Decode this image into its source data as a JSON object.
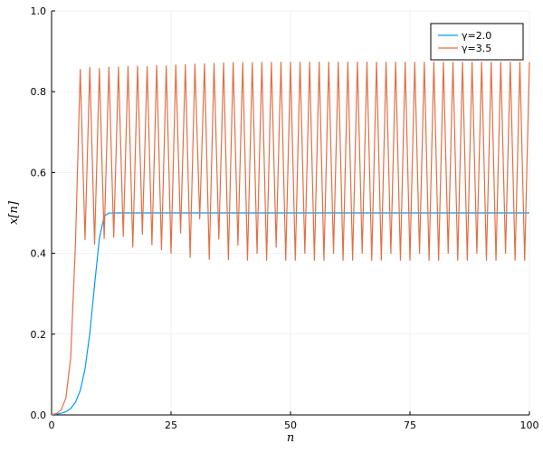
{
  "chart_data": {
    "type": "line",
    "title": "",
    "xlabel": "n",
    "ylabel": "x[n]",
    "xlim": [
      0,
      100
    ],
    "ylim": [
      0,
      1
    ],
    "x_ticks": [
      0,
      25,
      50,
      75,
      100
    ],
    "y_ticks": [
      0.0,
      0.2,
      0.4,
      0.6,
      0.8,
      1.0
    ],
    "x_tick_labels": [
      "0",
      "25",
      "50",
      "75",
      "100"
    ],
    "y_tick_labels": [
      "0.0",
      "0.2",
      "0.4",
      "0.6",
      "0.8",
      "1.0"
    ],
    "grid": true,
    "legend_position": "top-right",
    "series": [
      {
        "name": "γ=2.0",
        "color": "#009AFA",
        "x": [
          0,
          1,
          2,
          3,
          4,
          5,
          6,
          7,
          8,
          9,
          10,
          11,
          12,
          13,
          14,
          15,
          16,
          17,
          18,
          19,
          20,
          21,
          22,
          23,
          24,
          25,
          26,
          27,
          28,
          29,
          30,
          31,
          32,
          33,
          34,
          35,
          36,
          37,
          38,
          39,
          40,
          41,
          42,
          43,
          44,
          45,
          46,
          47,
          48,
          49,
          50,
          51,
          52,
          53,
          54,
          55,
          56,
          57,
          58,
          59,
          60,
          61,
          62,
          63,
          64,
          65,
          66,
          67,
          68,
          69,
          70,
          71,
          72,
          73,
          74,
          75,
          76,
          77,
          78,
          79,
          80,
          81,
          82,
          83,
          84,
          85,
          86,
          87,
          88,
          89,
          90,
          91,
          92,
          93,
          94,
          95,
          96,
          97,
          98,
          99,
          100
        ],
        "y": [
          0.001,
          0.002,
          0.004,
          0.008,
          0.0159,
          0.0313,
          0.0606,
          0.1139,
          0.2018,
          0.3222,
          0.4368,
          0.492,
          0.4999,
          0.5,
          0.5,
          0.5,
          0.5,
          0.5,
          0.5,
          0.5,
          0.5,
          0.5,
          0.5,
          0.5,
          0.5,
          0.5,
          0.5,
          0.5,
          0.5,
          0.5,
          0.5,
          0.5,
          0.5,
          0.5,
          0.5,
          0.5,
          0.5,
          0.5,
          0.5,
          0.5,
          0.5,
          0.5,
          0.5,
          0.5,
          0.5,
          0.5,
          0.5,
          0.5,
          0.5,
          0.5,
          0.5,
          0.5,
          0.5,
          0.5,
          0.5,
          0.5,
          0.5,
          0.5,
          0.5,
          0.5,
          0.5,
          0.5,
          0.5,
          0.5,
          0.5,
          0.5,
          0.5,
          0.5,
          0.5,
          0.5,
          0.5,
          0.5,
          0.5,
          0.5,
          0.5,
          0.5,
          0.5,
          0.5,
          0.5,
          0.5,
          0.5,
          0.5,
          0.5,
          0.5,
          0.5,
          0.5,
          0.5,
          0.5,
          0.5,
          0.5,
          0.5,
          0.5,
          0.5,
          0.5,
          0.5,
          0.5,
          0.5,
          0.5,
          0.5,
          0.5,
          0.5
        ]
      },
      {
        "name": "γ=3.5",
        "color": "#E26F46",
        "x": [
          0,
          1,
          2,
          3,
          4,
          5,
          6,
          7,
          8,
          9,
          10,
          11,
          12,
          13,
          14,
          15,
          16,
          17,
          18,
          19,
          20,
          21,
          22,
          23,
          24,
          25,
          26,
          27,
          28,
          29,
          30,
          31,
          32,
          33,
          34,
          35,
          36,
          37,
          38,
          39,
          40,
          41,
          42,
          43,
          44,
          45,
          46,
          47,
          48,
          49,
          50,
          51,
          52,
          53,
          54,
          55,
          56,
          57,
          58,
          59,
          60,
          61,
          62,
          63,
          64,
          65,
          66,
          67,
          68,
          69,
          70,
          71,
          72,
          73,
          74,
          75,
          76,
          77,
          78,
          79,
          80,
          81,
          82,
          83,
          84,
          85,
          86,
          87,
          88,
          89,
          90,
          91,
          92,
          93,
          94,
          95,
          96,
          97,
          98,
          99,
          100
        ],
        "y": [
          0.001,
          0.0035,
          0.0122,
          0.0422,
          0.1414,
          0.425,
          0.8553,
          0.4336,
          0.8596,
          0.4226,
          0.857,
          0.4366,
          0.8604,
          0.4396,
          0.861,
          0.4414,
          0.8623,
          0.415,
          0.863,
          0.447,
          0.862,
          0.421,
          0.8645,
          0.409,
          0.8635,
          0.4,
          0.866,
          0.45,
          0.867,
          0.39,
          0.868,
          0.485,
          0.869,
          0.385,
          0.87,
          0.435,
          0.871,
          0.384,
          0.872,
          0.42,
          0.872,
          0.383,
          0.872,
          0.4,
          0.8725,
          0.383,
          0.8725,
          0.415,
          0.873,
          0.383,
          0.873,
          0.383,
          0.873,
          0.4,
          0.873,
          0.383,
          0.873,
          0.383,
          0.873,
          0.4,
          0.873,
          0.383,
          0.873,
          0.383,
          0.873,
          0.4,
          0.873,
          0.383,
          0.873,
          0.383,
          0.873,
          0.4,
          0.873,
          0.383,
          0.873,
          0.383,
          0.873,
          0.4,
          0.873,
          0.383,
          0.873,
          0.383,
          0.873,
          0.4,
          0.873,
          0.383,
          0.873,
          0.383,
          0.873,
          0.4,
          0.873,
          0.383,
          0.873,
          0.383,
          0.873,
          0.4,
          0.873,
          0.383,
          0.873,
          0.383,
          0.873
        ]
      }
    ]
  }
}
